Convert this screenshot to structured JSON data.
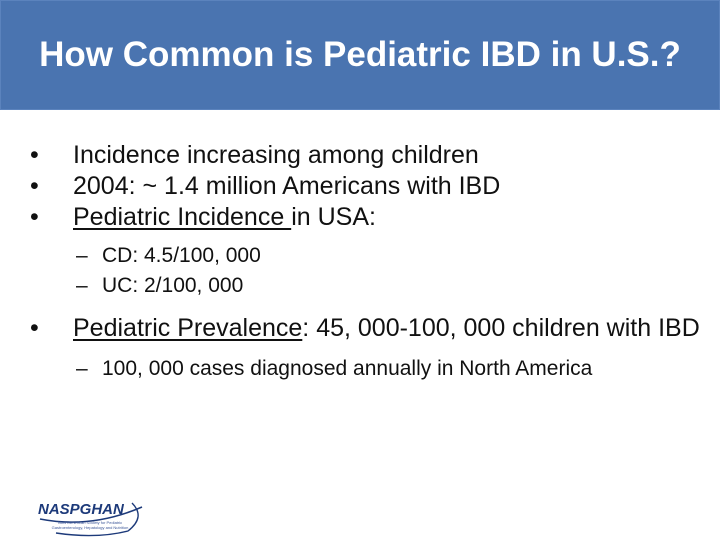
{
  "slide": {
    "title": "How Common is Pediatric IBD in U.S.?",
    "bullet_glyph": "•",
    "dash_glyph": "–",
    "bullets": [
      {
        "prefix": "",
        "underlined": "",
        "text": "Incidence increasing among children"
      },
      {
        "prefix": "",
        "underlined": "",
        "text": "2004: ~ 1.4 million Americans with IBD"
      },
      {
        "prefix": "",
        "underlined": "Pediatric Incidence ",
        "text": "in USA:"
      }
    ],
    "sub_bullets_1": [
      "CD: 4.5/100, 000",
      "UC: 2/100, 000"
    ],
    "bullet_4": {
      "underlined": "Pediatric Prevalence",
      "text": ": 45, 000-100, 000 children with IBD"
    },
    "sub_bullets_2": [
      " 100, 000 cases diagnosed annually in North America"
    ]
  },
  "logo": {
    "name": "NASPGHAN",
    "tagline": "North American Society for Pediatric Gastroenterology, Hepatology and Nutrition"
  },
  "colors": {
    "title_bar": "#4a74b0",
    "title_text": "#ffffff",
    "logo": "#1d3a7a"
  }
}
